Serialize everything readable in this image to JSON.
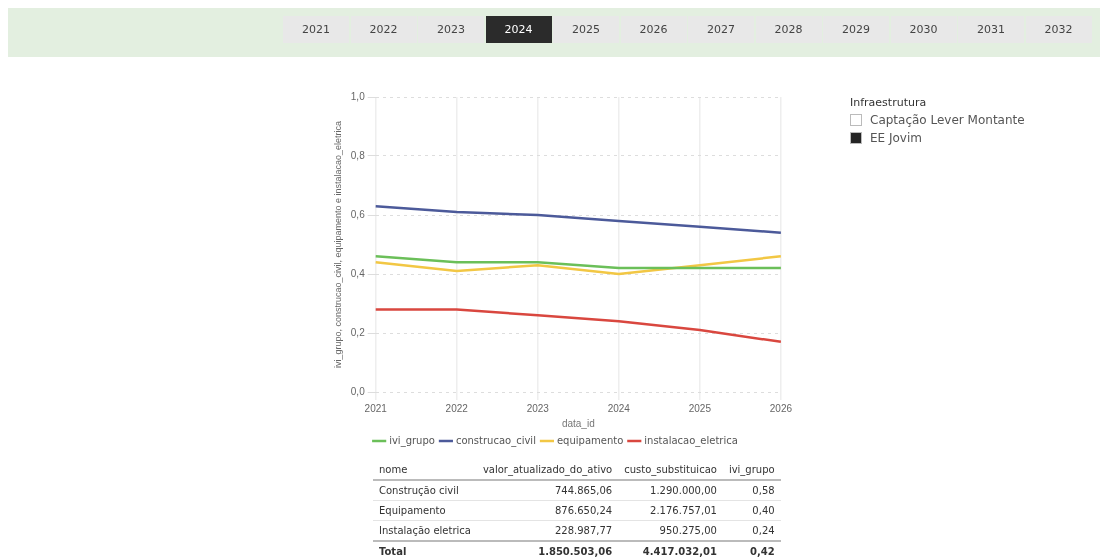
{
  "chart_data": [
    {
      "type": "line",
      "annotations": [
        "2021",
        "2022",
        "2023",
        "2024",
        "2025",
        "2026",
        "2027",
        "2028",
        "2029",
        "2030",
        "2031",
        "2032"
      ],
      "colors": [
        "#e8e8e8",
        "#e8e8e8",
        "#e8e8e8",
        "#2b2b2b",
        "#e8e8e8",
        "#e8e8e8",
        "#e8e8e8",
        "#e8e8e8",
        "#e8e8e8",
        "#e8e8e8",
        "#e8e8e8",
        "#e8e8e8"
      ],
      "xlabel": "data_id",
      "ylabel": "ivi_grupo, construcao_civil, equipamento e instalacao_eletrica",
      "categories": [
        "2021",
        "2022",
        "2023",
        "2024",
        "2025",
        "2026"
      ],
      "series": [
        {
          "name": "ivi_grupo",
          "color": "#6bbf59",
          "values": [
            0.46,
            0.44,
            0.44,
            0.42,
            0.42,
            0.42
          ]
        },
        {
          "name": "construcao_civil",
          "color": "#4c5a9a",
          "values": [
            0.63,
            0.61,
            0.6,
            0.58,
            0.56,
            0.54
          ]
        },
        {
          "name": "equipamento",
          "color": "#f2c744",
          "values": [
            0.44,
            0.41,
            0.43,
            0.4,
            0.43,
            0.46
          ]
        },
        {
          "name": "instalacao_eletrica",
          "color": "#d9473f",
          "values": [
            0.28,
            0.28,
            0.26,
            0.24,
            0.21,
            0.17
          ]
        }
      ],
      "ylim": [
        0,
        1
      ],
      "yticks": [
        {
          "value": 0,
          "label": "0,0"
        },
        {
          "value": 0.2,
          "label": "0,2"
        },
        {
          "value": 0.4,
          "label": "0,4"
        },
        {
          "value": 0.6,
          "label": "0,6"
        },
        {
          "value": 0.8,
          "label": "0,8"
        },
        {
          "value": 1,
          "label": "1,0"
        }
      ],
      "grid": true,
      "legend": "bottom",
      "line_style": "solid"
    },
    {
      "type": "other",
      "legend_title": "Infraestrutura",
      "categories": [
        "Captação Lever Montante",
        "EE Jovim"
      ],
      "colors": [
        "#ffffff",
        "#252525"
      ]
    },
    {
      "type": "other",
      "categories": [
        "nome",
        "valor_atualizado_do_ativo",
        "custo_substituicao",
        "ivi_grupo"
      ],
      "annotations": [
        "Construção civil",
        "744.865,06",
        "1.290.000,00",
        "0,58",
        "Equipamento",
        "876.650,24",
        "2.176.757,01",
        "0,40",
        "Instalação eletrica",
        "228.987,77",
        "950.275,00",
        "0,24",
        "Total",
        "1.850.503,06",
        "4.417.032,01",
        "0,42"
      ]
    }
  ]
}
